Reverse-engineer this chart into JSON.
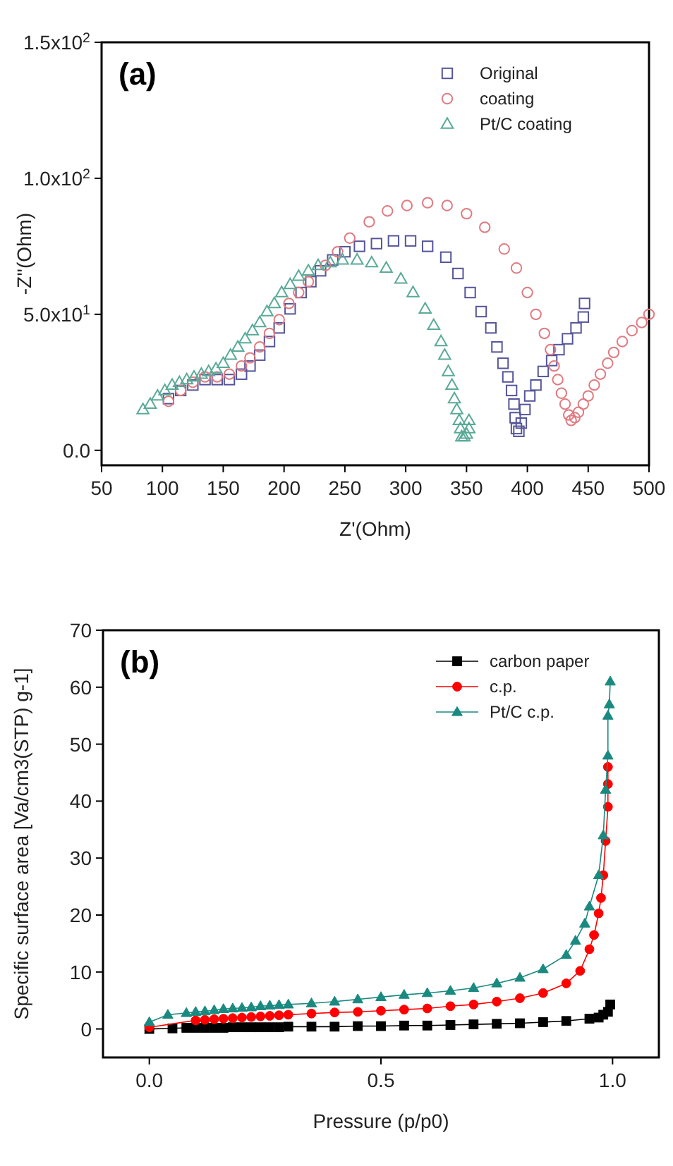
{
  "chart_data": [
    {
      "type": "scatter",
      "xlabel": "Z'(Ohm)",
      "ylabel": "-Z''(Ohm)",
      "annotations": [
        "(a)"
      ],
      "xlim": [
        50,
        500
      ],
      "xticks": [
        50,
        100,
        150,
        200,
        250,
        300,
        350,
        400,
        450,
        500
      ],
      "ylim": [
        -5.5,
        150
      ],
      "yticks": [
        {
          "value": 0,
          "label": "0.0"
        },
        {
          "value": 50,
          "label": "5.0x10$^{1}$"
        },
        {
          "value": 100,
          "label": "1.0x10$^{2}$"
        },
        {
          "value": 150,
          "label": "1.5x10$^{2}$"
        }
      ],
      "legend": "top right",
      "grid": false,
      "series": [
        {
          "name": "Original",
          "color": "#55559a",
          "marker": "square",
          "x": [
            105,
            115,
            125,
            135,
            145,
            155,
            165,
            172,
            180,
            188,
            196,
            205,
            214,
            222,
            230,
            240,
            250,
            262,
            276,
            290,
            304,
            318,
            333,
            343,
            353,
            362,
            370,
            375,
            380,
            384,
            387,
            389,
            390,
            391,
            393,
            395,
            398,
            402,
            407,
            413,
            420,
            426,
            433,
            440,
            446,
            447
          ],
          "values": [
            19,
            22,
            24,
            26,
            26,
            26,
            28,
            31,
            35,
            40,
            45,
            52,
            58,
            62,
            66,
            70,
            73,
            75,
            76,
            77,
            77,
            75,
            71,
            65,
            58,
            51,
            45,
            38,
            32,
            27,
            22,
            17,
            12,
            8,
            7,
            10,
            15,
            20,
            24,
            29,
            33,
            37,
            41,
            45,
            49,
            54
          ]
        },
        {
          "name": "coating",
          "color": "#e07a80",
          "marker": "circle",
          "x": [
            105,
            115,
            125,
            135,
            145,
            155,
            165,
            172,
            180,
            188,
            196,
            204,
            212,
            220,
            234,
            244,
            254,
            270,
            285,
            301,
            318,
            334,
            350,
            365,
            381,
            391,
            400,
            407,
            414,
            419,
            422,
            425,
            428,
            431,
            434,
            436,
            439,
            442,
            446,
            450,
            455,
            460,
            466,
            471,
            478,
            486,
            494,
            500
          ],
          "values": [
            18,
            22,
            25,
            27,
            27,
            28,
            31,
            34,
            38,
            43,
            48,
            54,
            58,
            62,
            68,
            73,
            78,
            84,
            88,
            90,
            91,
            90,
            87,
            82,
            74,
            67,
            58,
            50,
            43,
            37,
            31,
            26,
            21,
            17,
            13,
            11,
            12,
            14,
            17,
            20,
            24,
            28,
            32,
            36,
            40,
            44,
            47,
            50
          ]
        },
        {
          "name": "Pt/C coating",
          "color": "#5aaa98",
          "marker": "triangle",
          "x": [
            84,
            90,
            96,
            102,
            108,
            114,
            120,
            126,
            132,
            138,
            144,
            150,
            156,
            162,
            168,
            174,
            180,
            186,
            192,
            198,
            205,
            212,
            220,
            228,
            238,
            248,
            260,
            272,
            284,
            296,
            306,
            316,
            323,
            329,
            332,
            335,
            338,
            340,
            342,
            344,
            345,
            346,
            348,
            350,
            352,
            352
          ],
          "values": [
            15,
            17,
            20,
            22,
            24,
            25,
            26,
            27,
            28,
            29,
            30,
            32,
            35,
            38,
            41,
            44,
            47,
            51,
            54,
            58,
            61,
            64,
            66,
            68,
            69,
            70,
            70,
            69,
            67,
            63,
            58,
            52,
            46,
            40,
            35,
            29,
            24,
            19,
            15,
            11,
            8,
            5,
            5,
            6,
            8,
            11
          ]
        }
      ]
    },
    {
      "type": "line",
      "xlabel": "Pressure (p/p0)",
      "ylabel": "Specific surface area [Va/cm3(STP) g-1]",
      "annotations": [
        "(b)"
      ],
      "xlim": [
        -0.1,
        1.1
      ],
      "xticks": [
        {
          "value": 0,
          "label": "0.0"
        },
        0.5,
        {
          "value": 1,
          "label": "1.0"
        }
      ],
      "ylim": [
        -5,
        70
      ],
      "yticks": [
        0,
        10,
        20,
        30,
        40,
        50,
        60,
        70
      ],
      "legend": "top right",
      "grid": false,
      "series": [
        {
          "name": "carbon paper",
          "color": "#000000",
          "marker": "square",
          "x": [
            0,
            0.05,
            0.08,
            0.1,
            0.12,
            0.14,
            0.16,
            0.18,
            0.2,
            0.22,
            0.24,
            0.26,
            0.28,
            0.3,
            0.35,
            0.4,
            0.45,
            0.5,
            0.55,
            0.6,
            0.65,
            0.7,
            0.75,
            0.8,
            0.85,
            0.9,
            0.95,
            0.97,
            0.98,
            0.99,
            0.995
          ],
          "values": [
            0,
            0.1,
            0.2,
            0.2,
            0.2,
            0.2,
            0.2,
            0.3,
            0.3,
            0.3,
            0.3,
            0.3,
            0.3,
            0.4,
            0.4,
            0.4,
            0.5,
            0.5,
            0.6,
            0.6,
            0.7,
            0.8,
            0.9,
            1.0,
            1.2,
            1.4,
            1.8,
            2.0,
            2.5,
            3.0,
            4.3
          ]
        },
        {
          "name": "c.p.",
          "color": "#ff0000",
          "marker": "circle",
          "x": [
            0,
            0.1,
            0.12,
            0.14,
            0.16,
            0.18,
            0.2,
            0.22,
            0.24,
            0.26,
            0.28,
            0.3,
            0.35,
            0.4,
            0.45,
            0.5,
            0.55,
            0.6,
            0.65,
            0.7,
            0.75,
            0.8,
            0.85,
            0.9,
            0.93,
            0.95,
            0.96,
            0.97,
            0.975,
            0.98,
            0.985,
            0.99,
            0.99,
            0.99
          ],
          "values": [
            0.3,
            1.5,
            1.6,
            1.7,
            1.8,
            1.9,
            2.0,
            2.1,
            2.2,
            2.3,
            2.4,
            2.5,
            2.7,
            2.9,
            3.0,
            3.2,
            3.4,
            3.6,
            4.0,
            4.3,
            4.8,
            5.4,
            6.3,
            8.0,
            10.2,
            14,
            16.5,
            20.3,
            23,
            27,
            33,
            39,
            43,
            46
          ]
        },
        {
          "name": "Pt/C c.p.",
          "color": "#1a8a80",
          "marker": "triangle",
          "x": [
            0,
            0.04,
            0.08,
            0.1,
            0.12,
            0.14,
            0.16,
            0.18,
            0.2,
            0.22,
            0.24,
            0.26,
            0.28,
            0.3,
            0.35,
            0.4,
            0.45,
            0.5,
            0.55,
            0.6,
            0.65,
            0.7,
            0.75,
            0.8,
            0.85,
            0.9,
            0.92,
            0.94,
            0.95,
            0.97,
            0.98,
            0.985,
            0.99,
            0.99,
            0.993,
            0.995
          ],
          "values": [
            1.2,
            2.5,
            2.8,
            3.0,
            3.1,
            3.3,
            3.5,
            3.6,
            3.7,
            3.8,
            4.0,
            4.1,
            4.2,
            4.3,
            4.5,
            4.8,
            5.2,
            5.6,
            6.0,
            6.3,
            6.7,
            7.2,
            8.0,
            9.0,
            10.5,
            13,
            15.5,
            18.5,
            21.5,
            27,
            34,
            42,
            48,
            55,
            57,
            61
          ]
        }
      ]
    }
  ]
}
